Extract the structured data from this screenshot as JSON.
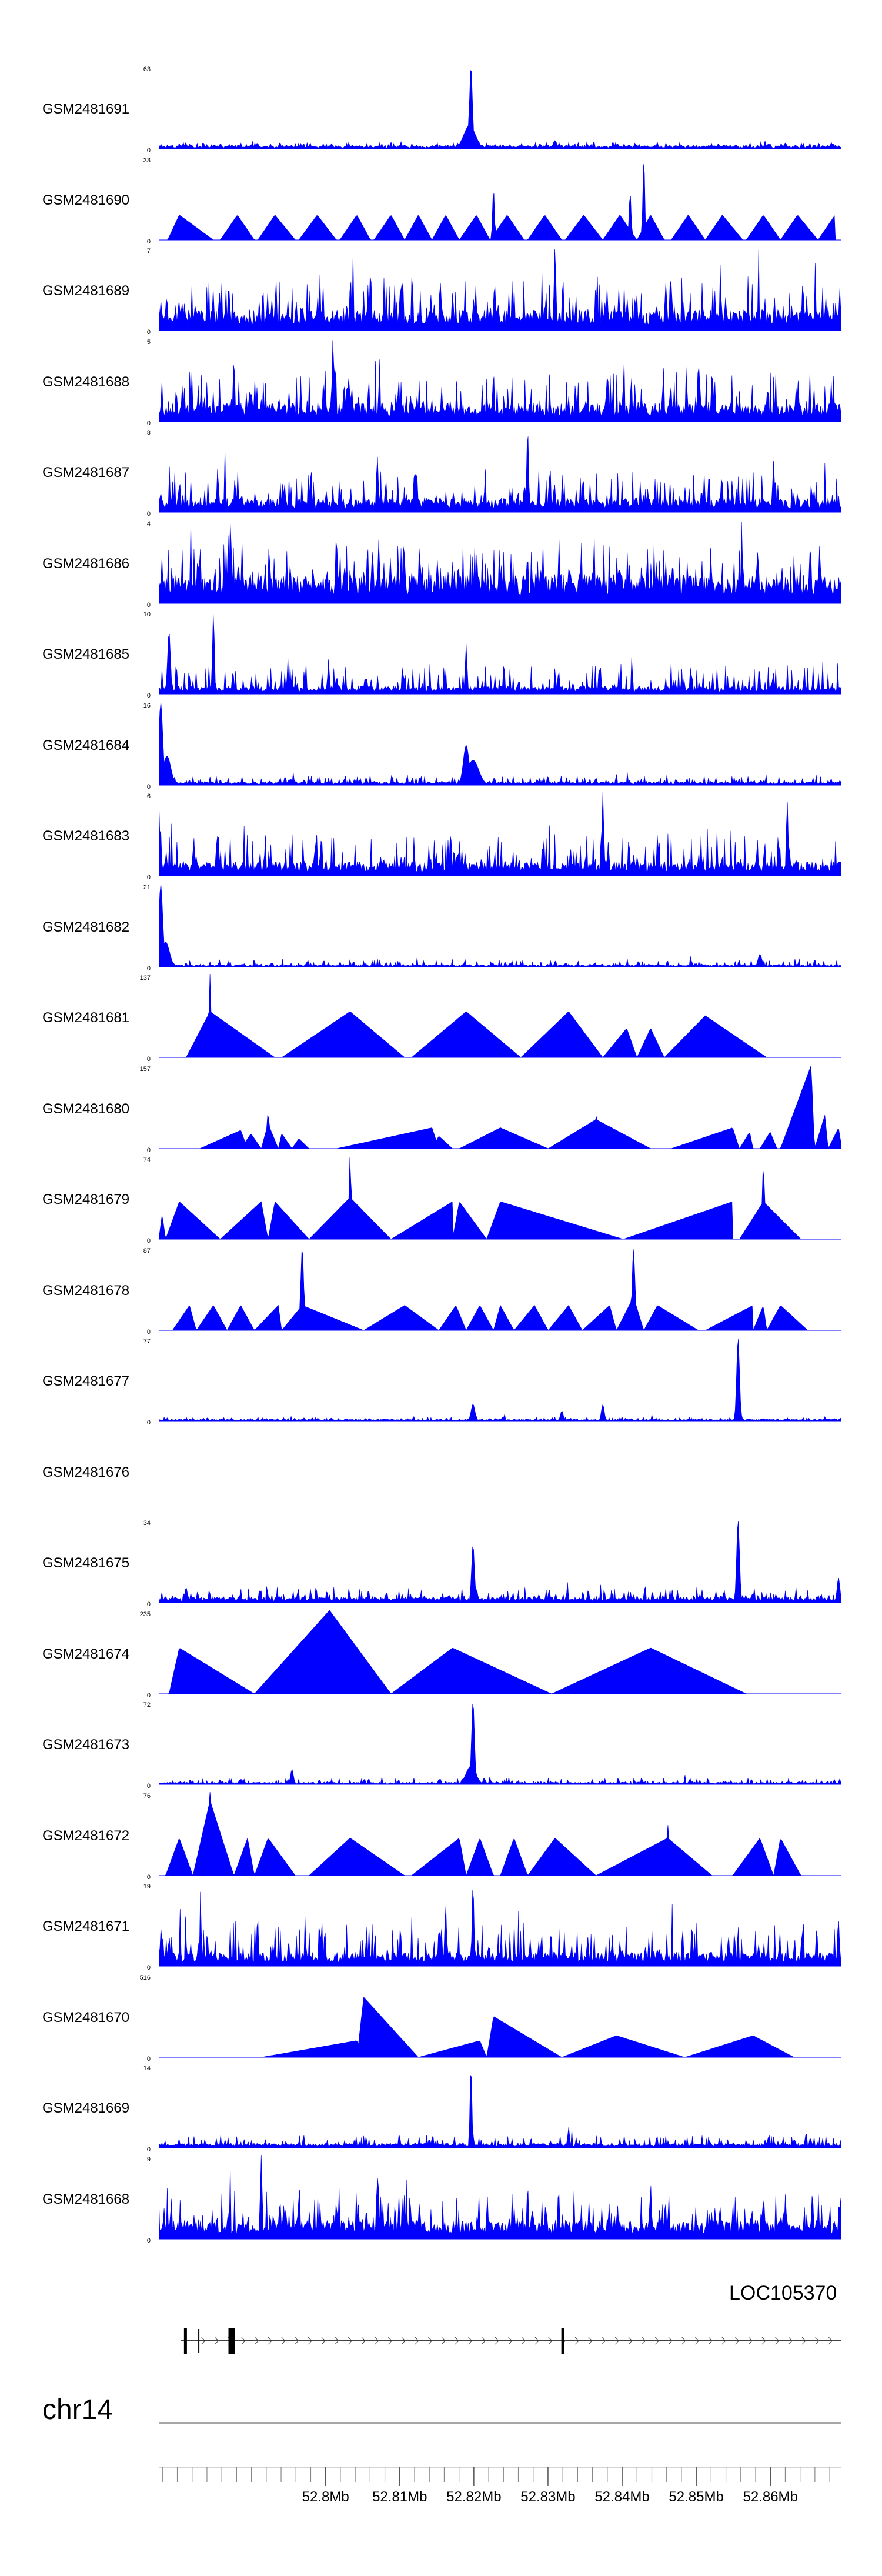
{
  "chart_data": {
    "type": "area",
    "title": "",
    "chromosome": "chr14",
    "gene": {
      "label": "LOC105370",
      "strand": "+",
      "exon_starts": [
        52.7809,
        52.7869,
        52.8318
      ],
      "exon_ends": [
        52.7813,
        52.7878,
        52.8322
      ]
    },
    "x_axis": {
      "range": [
        52.7775,
        52.8695
      ],
      "ticks": [
        52.8,
        52.81,
        52.82,
        52.83,
        52.84,
        52.85,
        52.86
      ],
      "tick_labels": [
        "52.8Mb",
        "52.81Mb",
        "52.82Mb",
        "52.83Mb",
        "52.84Mb",
        "52.85Mb",
        "52.86Mb"
      ],
      "minor_step": 0.002
    },
    "color": "#0000ff",
    "series": [
      {
        "name": "GSM2481691",
        "max": 63,
        "min": 0,
        "kind": "dense",
        "base": 0.03,
        "noise": 0.05,
        "peaks": [
          [
            0.457,
            1.0,
            0.003
          ],
          [
            0.455,
            0.28,
            0.012
          ],
          [
            0.58,
            0.1,
            0.004
          ]
        ]
      },
      {
        "name": "GSM2481690",
        "max": 33,
        "min": 0,
        "kind": "tri",
        "peaks": [
          [
            0.71,
            1.0,
            0.002
          ],
          [
            0.69,
            0.58,
            0.002
          ],
          [
            0.49,
            0.62,
            0.002
          ]
        ],
        "tri": [
          [
            0.013,
            0.03,
            0.08,
            0.3
          ],
          [
            0.09,
            0.115,
            0.14,
            0.3
          ],
          [
            0.145,
            0.17,
            0.2,
            0.3
          ],
          [
            0.205,
            0.232,
            0.26,
            0.3
          ],
          [
            0.265,
            0.29,
            0.31,
            0.3
          ],
          [
            0.315,
            0.34,
            0.36,
            0.3
          ],
          [
            0.36,
            0.38,
            0.4,
            0.3
          ],
          [
            0.4,
            0.42,
            0.44,
            0.3
          ],
          [
            0.44,
            0.465,
            0.485,
            0.3
          ],
          [
            0.485,
            0.51,
            0.535,
            0.3
          ],
          [
            0.54,
            0.565,
            0.59,
            0.3
          ],
          [
            0.595,
            0.622,
            0.65,
            0.3
          ],
          [
            0.65,
            0.675,
            0.7,
            0.3
          ],
          [
            0.7,
            0.72,
            0.74,
            0.3
          ],
          [
            0.75,
            0.775,
            0.8,
            0.3
          ],
          [
            0.8,
            0.825,
            0.855,
            0.3
          ],
          [
            0.86,
            0.885,
            0.91,
            0.3
          ],
          [
            0.91,
            0.935,
            0.965,
            0.3
          ],
          [
            0.965,
            0.99,
            0.99,
            0.3
          ]
        ]
      },
      {
        "name": "GSM2481689",
        "max": 7,
        "min": 0,
        "kind": "dense",
        "base": 0.18,
        "noise": 0.42,
        "peaks": [
          [
            0.58,
            1.0,
            0.002
          ],
          [
            0.31,
            0.72,
            0.002
          ]
        ]
      },
      {
        "name": "GSM2481688",
        "max": 5,
        "min": 0,
        "kind": "dense",
        "base": 0.16,
        "noise": 0.44,
        "peaks": [
          [
            0.255,
            1.0,
            0.002
          ],
          [
            0.11,
            0.75,
            0.002
          ],
          [
            0.79,
            0.72,
            0.002
          ]
        ]
      },
      {
        "name": "GSM2481687",
        "max": 8,
        "min": 0,
        "kind": "dense",
        "base": 0.12,
        "noise": 0.36,
        "peaks": [
          [
            0.54,
            1.0,
            0.002
          ],
          [
            0.32,
            0.68,
            0.002
          ],
          [
            0.9,
            0.62,
            0.002
          ]
        ]
      },
      {
        "name": "GSM2481686",
        "max": 4,
        "min": 0,
        "kind": "dense",
        "base": 0.25,
        "noise": 0.45,
        "peaks": [
          [
            0.105,
            1.0,
            0.002
          ],
          [
            0.26,
            0.82,
            0.002
          ]
        ]
      },
      {
        "name": "GSM2481685",
        "max": 10,
        "min": 0,
        "kind": "dense",
        "base": 0.07,
        "noise": 0.28,
        "peaks": [
          [
            0.08,
            1.0,
            0.002
          ],
          [
            0.015,
            0.75,
            0.003
          ],
          [
            0.45,
            0.6,
            0.002
          ]
        ]
      },
      {
        "name": "GSM2481684",
        "max": 16,
        "min": 0,
        "kind": "dense",
        "base": 0.03,
        "noise": 0.08,
        "peaks": [
          [
            0.003,
            1.0,
            0.004
          ],
          [
            0.012,
            0.35,
            0.008
          ],
          [
            0.45,
            0.48,
            0.006
          ],
          [
            0.46,
            0.3,
            0.012
          ]
        ]
      },
      {
        "name": "GSM2481683",
        "max": 6,
        "min": 0,
        "kind": "dense",
        "base": 0.12,
        "noise": 0.4,
        "peaks": [
          [
            0.65,
            1.0,
            0.002
          ],
          [
            0.0,
            0.95,
            0.002
          ],
          [
            0.92,
            0.9,
            0.002
          ]
        ]
      },
      {
        "name": "GSM2481682",
        "max": 21,
        "min": 0,
        "kind": "dense",
        "base": 0.02,
        "noise": 0.06,
        "peaks": [
          [
            0.003,
            1.0,
            0.004
          ],
          [
            0.01,
            0.3,
            0.008
          ],
          [
            0.88,
            0.15,
            0.004
          ]
        ]
      },
      {
        "name": "GSM2481681",
        "max": 137,
        "min": 0,
        "kind": "tri",
        "peaks": [
          [
            0.075,
            1.0,
            0.002
          ],
          [
            0.28,
            0.4,
            0.002
          ]
        ],
        "tri": [
          [
            0.04,
            0.075,
            0.17,
            0.55
          ],
          [
            0.18,
            0.28,
            0.36,
            0.55
          ],
          [
            0.37,
            0.45,
            0.53,
            0.55
          ],
          [
            0.53,
            0.6,
            0.65,
            0.55
          ],
          [
            0.65,
            0.685,
            0.7,
            0.35
          ],
          [
            0.7,
            0.72,
            0.74,
            0.35
          ],
          [
            0.74,
            0.8,
            0.89,
            0.5
          ]
        ]
      },
      {
        "name": "GSM2481680",
        "max": 157,
        "min": 0,
        "kind": "tri",
        "peaks": [
          [
            0.16,
            0.45,
            0.002
          ],
          [
            0.64,
            0.42,
            0.002
          ],
          [
            0.955,
            1.0,
            0.002
          ]
        ],
        "tri": [
          [
            0.06,
            0.12,
            0.13,
            0.22
          ],
          [
            0.12,
            0.135,
            0.15,
            0.18
          ],
          [
            0.15,
            0.16,
            0.175,
            0.3
          ],
          [
            0.175,
            0.18,
            0.195,
            0.18
          ],
          [
            0.195,
            0.205,
            0.22,
            0.12
          ],
          [
            0.26,
            0.4,
            0.41,
            0.25
          ],
          [
            0.4,
            0.41,
            0.43,
            0.15
          ],
          [
            0.44,
            0.5,
            0.57,
            0.25
          ],
          [
            0.57,
            0.64,
            0.72,
            0.35
          ],
          [
            0.75,
            0.84,
            0.85,
            0.25
          ],
          [
            0.85,
            0.865,
            0.87,
            0.2
          ],
          [
            0.88,
            0.895,
            0.905,
            0.2
          ],
          [
            0.91,
            0.955,
            0.96,
            1.0
          ],
          [
            0.96,
            0.975,
            0.98,
            0.4
          ],
          [
            0.98,
            0.995,
            1.0,
            0.25
          ]
        ]
      },
      {
        "name": "GSM2481679",
        "max": 74,
        "min": 0,
        "kind": "tri",
        "peaks": [
          [
            0.28,
            1.0,
            0.002
          ],
          [
            0.885,
            0.92,
            0.002
          ]
        ],
        "tri": [
          [
            0.0,
            0.005,
            0.01,
            0.3
          ],
          [
            0.01,
            0.03,
            0.09,
            0.45
          ],
          [
            0.09,
            0.15,
            0.16,
            0.45
          ],
          [
            0.16,
            0.17,
            0.22,
            0.45
          ],
          [
            0.22,
            0.28,
            0.34,
            0.5
          ],
          [
            0.34,
            0.43,
            0.43,
            0.45
          ],
          [
            0.43,
            0.44,
            0.48,
            0.45
          ],
          [
            0.48,
            0.5,
            0.68,
            0.45
          ],
          [
            0.68,
            0.84,
            0.84,
            0.45
          ],
          [
            0.85,
            0.885,
            0.94,
            0.45
          ]
        ]
      },
      {
        "name": "GSM2481678",
        "max": 87,
        "min": 0,
        "kind": "tri",
        "peaks": [
          [
            0.21,
            1.0,
            0.003
          ],
          [
            0.695,
            0.98,
            0.003
          ]
        ],
        "tri": [
          [
            0.02,
            0.045,
            0.055,
            0.3
          ],
          [
            0.055,
            0.08,
            0.1,
            0.3
          ],
          [
            0.1,
            0.12,
            0.14,
            0.3
          ],
          [
            0.14,
            0.175,
            0.18,
            0.3
          ],
          [
            0.18,
            0.21,
            0.3,
            0.3
          ],
          [
            0.3,
            0.36,
            0.41,
            0.3
          ],
          [
            0.41,
            0.435,
            0.45,
            0.3
          ],
          [
            0.45,
            0.47,
            0.49,
            0.3
          ],
          [
            0.49,
            0.5,
            0.52,
            0.3
          ],
          [
            0.52,
            0.55,
            0.57,
            0.3
          ],
          [
            0.57,
            0.6,
            0.62,
            0.3
          ],
          [
            0.62,
            0.66,
            0.67,
            0.3
          ],
          [
            0.67,
            0.695,
            0.71,
            0.4
          ],
          [
            0.71,
            0.73,
            0.79,
            0.3
          ],
          [
            0.8,
            0.87,
            0.87,
            0.3
          ],
          [
            0.87,
            0.885,
            0.89,
            0.3
          ],
          [
            0.89,
            0.91,
            0.95,
            0.3
          ]
        ]
      },
      {
        "name": "GSM2481677",
        "max": 77,
        "min": 0,
        "kind": "dense",
        "base": 0.015,
        "noise": 0.03,
        "peaks": [
          [
            0.848,
            1.0,
            0.003
          ],
          [
            0.46,
            0.2,
            0.004
          ],
          [
            0.65,
            0.2,
            0.003
          ],
          [
            0.59,
            0.12,
            0.003
          ]
        ]
      },
      {
        "name": "GSM2481676",
        "max": null,
        "min": null,
        "kind": "empty"
      },
      {
        "name": "GSM2481675",
        "max": 34,
        "min": 0,
        "kind": "dense",
        "base": 0.05,
        "noise": 0.12,
        "peaks": [
          [
            0.848,
            1.0,
            0.003
          ],
          [
            0.46,
            0.7,
            0.003
          ],
          [
            0.995,
            0.3,
            0.003
          ],
          [
            0.04,
            0.18,
            0.003
          ]
        ]
      },
      {
        "name": "GSM2481674",
        "max": 235,
        "min": 0,
        "kind": "tri",
        "tri": [
          [
            0.015,
            0.03,
            0.14,
            0.55
          ],
          [
            0.14,
            0.25,
            0.34,
            1.0
          ],
          [
            0.34,
            0.43,
            0.575,
            0.55
          ],
          [
            0.575,
            0.72,
            0.86,
            0.55
          ]
        ]
      },
      {
        "name": "GSM2481673",
        "max": 72,
        "min": 0,
        "kind": "dense",
        "base": 0.02,
        "noise": 0.05,
        "peaks": [
          [
            0.46,
            1.0,
            0.003
          ],
          [
            0.457,
            0.22,
            0.01
          ],
          [
            0.195,
            0.18,
            0.003
          ],
          [
            0.12,
            0.06,
            0.004
          ]
        ]
      },
      {
        "name": "GSM2481672",
        "max": 76,
        "min": 0,
        "kind": "tri",
        "peaks": [
          [
            0.075,
            1.0,
            0.002
          ],
          [
            0.745,
            0.62,
            0.002
          ]
        ],
        "tri": [
          [
            0.01,
            0.03,
            0.05,
            0.45
          ],
          [
            0.05,
            0.075,
            0.11,
            0.9
          ],
          [
            0.11,
            0.13,
            0.14,
            0.45
          ],
          [
            0.14,
            0.16,
            0.2,
            0.45
          ],
          [
            0.22,
            0.28,
            0.36,
            0.45
          ],
          [
            0.37,
            0.44,
            0.45,
            0.45
          ],
          [
            0.45,
            0.47,
            0.49,
            0.45
          ],
          [
            0.5,
            0.52,
            0.54,
            0.45
          ],
          [
            0.54,
            0.58,
            0.64,
            0.45
          ],
          [
            0.64,
            0.745,
            0.81,
            0.45
          ],
          [
            0.84,
            0.88,
            0.9,
            0.45
          ],
          [
            0.9,
            0.91,
            0.94,
            0.45
          ]
        ]
      },
      {
        "name": "GSM2481671",
        "max": 19,
        "min": 0,
        "kind": "dense",
        "base": 0.12,
        "noise": 0.4,
        "peaks": [
          [
            0.46,
            1.0,
            0.002
          ],
          [
            0.995,
            0.55,
            0.002
          ],
          [
            0.42,
            0.75,
            0.002
          ]
        ]
      },
      {
        "name": "GSM2481670",
        "max": 516,
        "min": 0,
        "kind": "tri",
        "tri": [
          [
            0.15,
            0.29,
            0.3,
            0.2
          ],
          [
            0.29,
            0.3,
            0.38,
            0.72
          ],
          [
            0.38,
            0.47,
            0.48,
            0.2
          ],
          [
            0.48,
            0.49,
            0.59,
            0.49
          ],
          [
            0.59,
            0.67,
            0.77,
            0.26
          ],
          [
            0.77,
            0.87,
            0.93,
            0.26
          ]
        ]
      },
      {
        "name": "GSM2481669",
        "max": 14,
        "min": 0,
        "kind": "dense",
        "base": 0.04,
        "noise": 0.12,
        "peaks": [
          [
            0.457,
            1.0,
            0.002
          ],
          [
            0.6,
            0.25,
            0.002
          ]
        ]
      },
      {
        "name": "GSM2481668",
        "max": 9,
        "min": 0,
        "kind": "dense",
        "base": 0.16,
        "noise": 0.42,
        "peaks": [
          [
            0.15,
            1.0,
            0.002
          ],
          [
            0.32,
            0.75,
            0.002
          ],
          [
            0.72,
            0.65,
            0.002
          ]
        ]
      }
    ]
  }
}
